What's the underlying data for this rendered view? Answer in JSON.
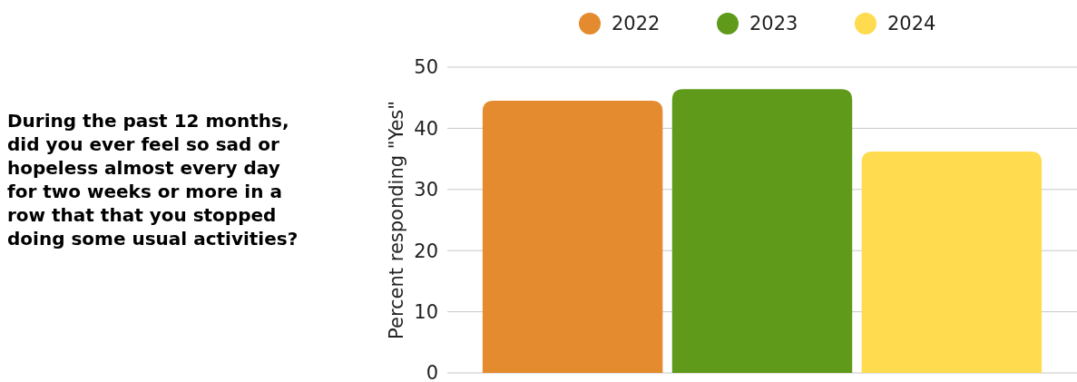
{
  "chart_data": {
    "type": "bar",
    "title": "During the past 12 months, did you ever feel so sad or hopeless almost every day for two weeks or more in a row that that you stopped doing some usual activities?",
    "ylabel": "Percent responding \"Yes\"",
    "categories": [
      null
    ],
    "series": [
      {
        "name": "2022",
        "color": "#e48a2f",
        "values": [
          44.5
        ]
      },
      {
        "name": "2023",
        "color": "#5f9a1a",
        "values": [
          46.4
        ]
      },
      {
        "name": "2024",
        "color": "#fedb4f",
        "values": [
          36.2
        ]
      }
    ],
    "ylim": [
      0,
      50
    ],
    "yticks": [
      0,
      10,
      20,
      30,
      40,
      50
    ],
    "grid": "y",
    "legend": "top"
  }
}
